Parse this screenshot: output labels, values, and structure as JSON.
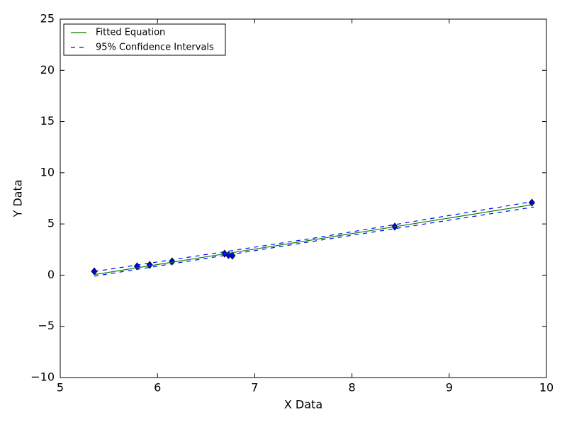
{
  "chart_data": {
    "type": "scatter",
    "xlabel": "X Data",
    "ylabel": "Y Data",
    "xlim": [
      5,
      10
    ],
    "ylim": [
      -10,
      25
    ],
    "xticks": [
      5,
      6,
      7,
      8,
      9,
      10
    ],
    "yticks": [
      {
        "value": -10,
        "label": "−10"
      },
      {
        "value": -5,
        "label": "−5"
      },
      0,
      5,
      10,
      15,
      20,
      25
    ],
    "legend": "upper left",
    "points": {
      "color": "#0000ff",
      "x": [
        5.35,
        5.79,
        5.92,
        6.15,
        6.69,
        6.73,
        6.77,
        8.44,
        9.85
      ],
      "values": [
        0.37,
        0.86,
        1.0,
        1.34,
        2.1,
        1.96,
        1.9,
        4.73,
        7.08
      ]
    },
    "series": [
      {
        "name": "Fitted Equation",
        "color": "#008000",
        "x": [
          5.35,
          7.6,
          9.87
        ],
        "values": [
          0.05,
          3.45,
          6.9
        ]
      },
      {
        "name": "95% Confidence Intervals",
        "color": "#0000ff",
        "x": [
          5.35,
          7.6,
          9.87
        ],
        "upper": [
          0.35,
          3.6,
          7.2
        ],
        "lower": [
          -0.1,
          3.3,
          6.65
        ]
      }
    ]
  }
}
